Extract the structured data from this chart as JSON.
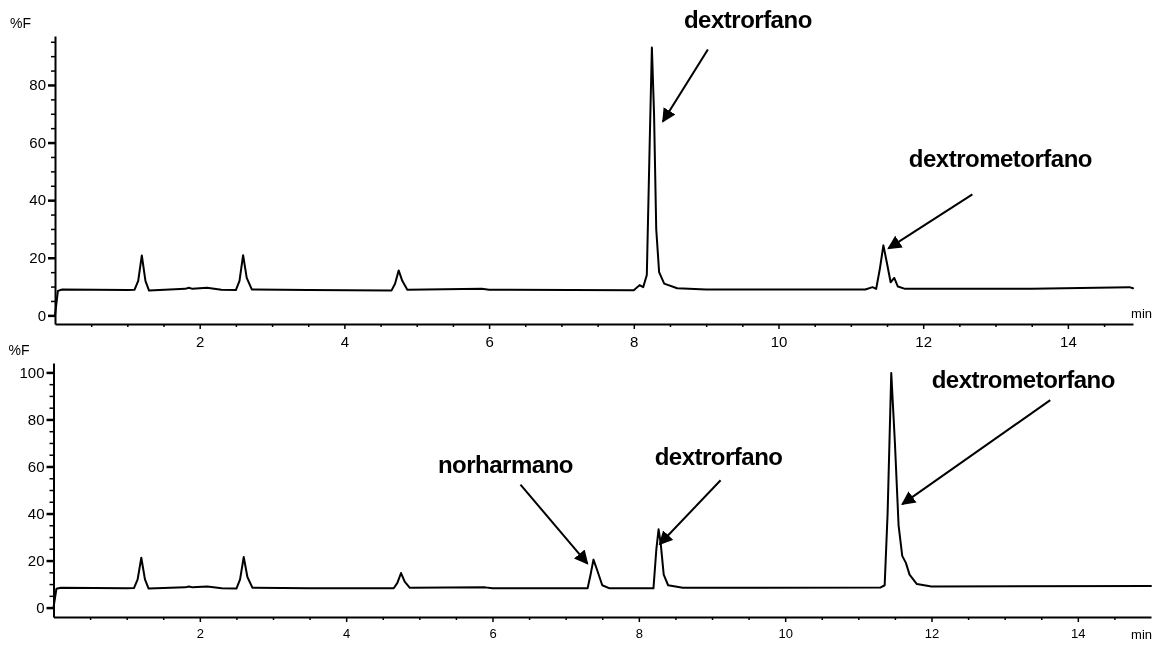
{
  "chart_data": [
    {
      "type": "line",
      "ylabel": "%F",
      "xlabel": "min",
      "xlim": [
        0,
        14.9
      ],
      "ylim": [
        -3,
        97
      ],
      "grid": false,
      "marker": "none",
      "line_style": "solid",
      "xticks": [
        {
          "value": 0.5,
          "label": null
        },
        {
          "value": 1,
          "label": null
        },
        {
          "value": 1.5,
          "label": null
        },
        2,
        {
          "value": 2.5,
          "label": null
        },
        {
          "value": 3,
          "label": null
        },
        {
          "value": 3.5,
          "label": null
        },
        4,
        {
          "value": 4.5,
          "label": null
        },
        {
          "value": 5,
          "label": null
        },
        {
          "value": 5.5,
          "label": null
        },
        6,
        {
          "value": 6.5,
          "label": null
        },
        {
          "value": 7,
          "label": null
        },
        {
          "value": 7.5,
          "label": null
        },
        8,
        {
          "value": 8.5,
          "label": null
        },
        {
          "value": 9,
          "label": null
        },
        {
          "value": 9.5,
          "label": null
        },
        10,
        {
          "value": 10.5,
          "label": null
        },
        {
          "value": 11,
          "label": null
        },
        {
          "value": 11.5,
          "label": null
        },
        12,
        {
          "value": 12.5,
          "label": null
        },
        {
          "value": 13,
          "label": null
        },
        {
          "value": 13.5,
          "label": null
        },
        14,
        {
          "value": 14.5,
          "label": null
        }
      ],
      "yticks": [
        0,
        {
          "value": 5,
          "label": null
        },
        {
          "value": 10,
          "label": null
        },
        {
          "value": 15,
          "label": null
        },
        20,
        {
          "value": 25,
          "label": null
        },
        {
          "value": 30,
          "label": null
        },
        {
          "value": 35,
          "label": null
        },
        40,
        {
          "value": 45,
          "label": null
        },
        {
          "value": 50,
          "label": null
        },
        {
          "value": 55,
          "label": null
        },
        60,
        {
          "value": 65,
          "label": null
        },
        {
          "value": 70,
          "label": null
        },
        {
          "value": 75,
          "label": null
        },
        80,
        {
          "value": 85,
          "label": null
        },
        {
          "value": 90,
          "label": null
        },
        {
          "value": 95,
          "label": null
        }
      ],
      "series": [
        {
          "color": "#000000",
          "x": [
            0,
            0.04,
            0.1,
            1.0,
            1.1,
            1.15,
            1.2,
            1.25,
            1.3,
            1.8,
            1.85,
            1.9,
            2.1,
            2.3,
            2.5,
            2.55,
            2.6,
            2.65,
            2.72,
            3.5,
            4.65,
            4.7,
            4.75,
            4.8,
            4.87,
            5.9,
            6,
            8.0,
            8.08,
            8.13,
            8.18,
            8.22,
            8.25,
            8.28,
            8.31,
            8.35,
            8.42,
            8.6,
            9,
            11.2,
            11.3,
            11.35,
            11.4,
            11.45,
            11.5,
            11.55,
            11.6,
            11.65,
            11.75,
            13.5,
            14.85,
            14.9
          ],
          "values": [
            0,
            8.5,
            9,
            8.8,
            8.9,
            12,
            20.8,
            12,
            8.6,
            9.2,
            9.6,
            9.2,
            9.6,
            8.9,
            8.8,
            12,
            20.9,
            13,
            9,
            8.8,
            8.6,
            11,
            15.6,
            12,
            8.9,
            9.2,
            8.9,
            8.7,
            10.5,
            9.8,
            14,
            60,
            93,
            70,
            30,
            15,
            11,
            9.4,
            9,
            9,
            9.8,
            9.2,
            16,
            24.3,
            18,
            11.5,
            13,
            10,
            9.2,
            9.2,
            9.8,
            9.4
          ]
        }
      ],
      "annotations": [
        {
          "text": "dextrorfano",
          "x": 8.25,
          "y": 93
        },
        {
          "text": "dextrometorfano",
          "x": 11.45,
          "y": 24.3
        }
      ]
    },
    {
      "type": "line",
      "ylabel": "%F",
      "xlabel": "min",
      "xlim": [
        0,
        15
      ],
      "ylim": [
        -4,
        104
      ],
      "grid": false,
      "marker": "none",
      "line_style": "solid",
      "xticks": [
        {
          "value": 0.5,
          "label": null
        },
        {
          "value": 1,
          "label": null
        },
        {
          "value": 1.5,
          "label": null
        },
        2,
        {
          "value": 2.5,
          "label": null
        },
        {
          "value": 3,
          "label": null
        },
        {
          "value": 3.5,
          "label": null
        },
        4,
        {
          "value": 4.5,
          "label": null
        },
        {
          "value": 5,
          "label": null
        },
        {
          "value": 5.5,
          "label": null
        },
        6,
        {
          "value": 6.5,
          "label": null
        },
        {
          "value": 7,
          "label": null
        },
        {
          "value": 7.5,
          "label": null
        },
        8,
        {
          "value": 8.5,
          "label": null
        },
        {
          "value": 9,
          "label": null
        },
        {
          "value": 9.5,
          "label": null
        },
        10,
        {
          "value": 10.5,
          "label": null
        },
        {
          "value": 11,
          "label": null
        },
        {
          "value": 11.5,
          "label": null
        },
        12,
        {
          "value": 12.5,
          "label": null
        },
        {
          "value": 13,
          "label": null
        },
        {
          "value": 13.5,
          "label": null
        },
        14,
        {
          "value": 14.5,
          "label": null
        }
      ],
      "yticks": [
        0,
        {
          "value": 5,
          "label": null
        },
        {
          "value": 10,
          "label": null
        },
        {
          "value": 15,
          "label": null
        },
        20,
        {
          "value": 25,
          "label": null
        },
        {
          "value": 30,
          "label": null
        },
        {
          "value": 35,
          "label": null
        },
        40,
        {
          "value": 45,
          "label": null
        },
        {
          "value": 50,
          "label": null
        },
        {
          "value": 55,
          "label": null
        },
        60,
        {
          "value": 65,
          "label": null
        },
        {
          "value": 70,
          "label": null
        },
        {
          "value": 75,
          "label": null
        },
        80,
        {
          "value": 85,
          "label": null
        },
        {
          "value": 90,
          "label": null
        },
        {
          "value": 95,
          "label": null
        },
        100
      ],
      "series": [
        {
          "color": "#000000",
          "x": [
            0,
            0.04,
            0.1,
            1.0,
            1.1,
            1.15,
            1.2,
            1.25,
            1.3,
            1.8,
            1.85,
            1.9,
            2.1,
            2.3,
            2.5,
            2.55,
            2.6,
            2.65,
            2.72,
            3.5,
            4.65,
            4.7,
            4.75,
            4.8,
            4.87,
            5.9,
            6,
            7.3,
            7.34,
            7.38,
            7.43,
            7.5,
            7.6,
            8.2,
            8.24,
            8.27,
            8.3,
            8.34,
            8.4,
            8.6,
            11.3,
            11.36,
            11.4,
            11.45,
            11.5,
            11.55,
            11.6,
            11.65,
            11.7,
            11.8,
            12,
            15
          ],
          "values": [
            0,
            8,
            8.4,
            8.2,
            8.3,
            12,
            21.2,
            12,
            8.1,
            8.6,
            9,
            8.6,
            9,
            8.2,
            8.1,
            12,
            21.5,
            13,
            8.4,
            8.2,
            8.2,
            10.5,
            14.7,
            11,
            8.4,
            8.6,
            8.2,
            8.2,
            14,
            20.4,
            16,
            9.5,
            8.2,
            8.2,
            25,
            33.3,
            27,
            14,
            9.5,
            8.4,
            8.5,
            9.5,
            40,
            99.7,
            70,
            35,
            22,
            19,
            14,
            10,
            9,
            9.2
          ]
        }
      ],
      "annotations": [
        {
          "text": "norharmano",
          "x": 7.38,
          "y": 20.4
        },
        {
          "text": "dextrorfano",
          "x": 8.27,
          "y": 33.3
        },
        {
          "text": "dextrometorfano",
          "x": 11.45,
          "y": 99.7
        }
      ]
    }
  ]
}
